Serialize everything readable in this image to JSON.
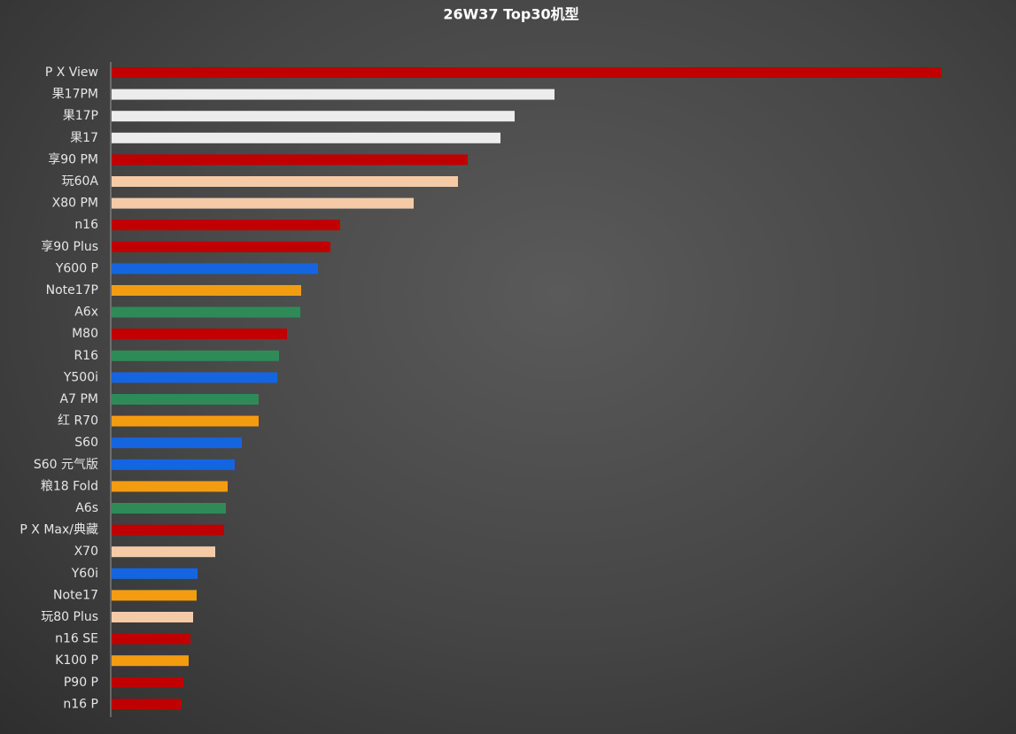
{
  "chart_data": {
    "type": "bar",
    "orientation": "horizontal",
    "title": "26W37 Top30机型",
    "categories": [
      "P X View",
      "果17PM",
      "果17P",
      "果17",
      "享90 PM",
      "玩60A",
      "X80 PM",
      "n16",
      "享90 Plus",
      "Y600 P",
      "Note17P",
      "A6x",
      "M80",
      "R16",
      "Y500i",
      "A7 PM",
      "红 R70",
      "S60",
      "S60 元气版",
      "粮18 Fold",
      "A6s",
      "P X Max/典藏",
      "X70",
      "Y60i",
      "Note17",
      "玩80 Plus",
      "n16 SE",
      "K100 P",
      "P90 P",
      "n16 P"
    ],
    "values": [
      937,
      500,
      455,
      439,
      402,
      391,
      341,
      258,
      247,
      233,
      214,
      213,
      198,
      189,
      187,
      166,
      166,
      147,
      139,
      131,
      129,
      127,
      117,
      97,
      96,
      92,
      89,
      87,
      81,
      79
    ],
    "colors": [
      "#c00000",
      "#ececec",
      "#ececec",
      "#ececec",
      "#c00000",
      "#f5cba7",
      "#f5cba7",
      "#c00000",
      "#c00000",
      "#1565e0",
      "#f39c12",
      "#2e8b57",
      "#c00000",
      "#2e8b57",
      "#1565e0",
      "#2e8b57",
      "#f39c12",
      "#1565e0",
      "#1565e0",
      "#f39c12",
      "#2e8b57",
      "#c00000",
      "#f5cba7",
      "#1565e0",
      "#f39c12",
      "#f5cba7",
      "#c00000",
      "#f39c12",
      "#c00000",
      "#c00000"
    ]
  }
}
